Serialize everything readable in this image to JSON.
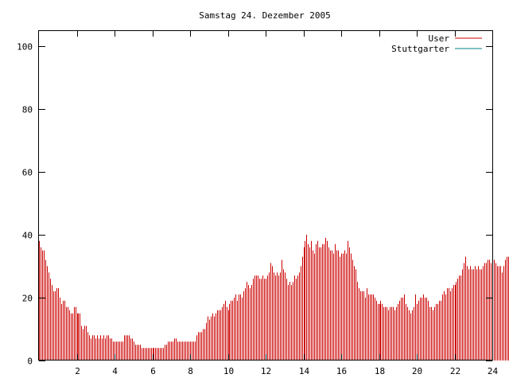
{
  "chart_data": {
    "type": "bar",
    "title": "Samstag 24. Dezember 2005",
    "xlabel": "",
    "ylabel": "",
    "xlim": [
      0,
      24
    ],
    "ylim": [
      0,
      105
    ],
    "x_ticks": [
      2,
      4,
      6,
      8,
      10,
      12,
      14,
      16,
      18,
      20,
      22,
      24
    ],
    "x_tick_labels": [
      "2",
      "4",
      "6",
      "8",
      "10",
      "12",
      "14",
      "16",
      "18",
      "20",
      "22",
      "24"
    ],
    "y_ticks": [
      0,
      20,
      40,
      60,
      80,
      100
    ],
    "y_tick_labels": [
      "0",
      "20",
      "40",
      "60",
      "80",
      "100"
    ],
    "grid": false,
    "legend_position": "top-right",
    "series": [
      {
        "name": "User",
        "color": "#cc0000",
        "style": "impulses",
        "x_step_minutes": 5,
        "values": [
          38,
          36,
          35,
          35,
          32,
          30,
          28,
          26,
          24,
          22,
          22,
          23,
          23,
          20,
          18,
          19,
          19,
          17,
          17,
          16,
          15,
          15,
          17,
          17,
          15,
          15,
          15,
          11,
          10,
          11,
          11,
          9,
          8,
          7,
          8,
          8,
          7,
          8,
          7,
          8,
          7,
          8,
          7,
          8,
          8,
          7,
          7,
          6,
          6,
          6,
          6,
          6,
          6,
          6,
          8,
          8,
          8,
          8,
          7,
          7,
          6,
          5,
          5,
          5,
          5,
          4,
          4,
          4,
          4,
          4,
          4,
          4,
          4,
          4,
          4,
          4,
          4,
          4,
          4,
          4,
          5,
          5,
          6,
          6,
          6,
          6,
          7,
          7,
          6,
          6,
          6,
          6,
          6,
          6,
          6,
          6,
          6,
          6,
          6,
          6,
          8,
          9,
          9,
          9,
          10,
          10,
          12,
          14,
          13,
          14,
          15,
          14,
          15,
          16,
          16,
          16,
          17,
          18,
          19,
          17,
          16,
          18,
          19,
          19,
          20,
          21,
          19,
          21,
          21,
          20,
          22,
          23,
          25,
          24,
          23,
          24,
          26,
          27,
          27,
          27,
          26,
          26,
          27,
          26,
          26,
          27,
          28,
          31,
          30,
          28,
          27,
          28,
          27,
          28,
          32,
          29,
          28,
          26,
          24,
          25,
          24,
          25,
          27,
          26,
          27,
          28,
          30,
          33,
          36,
          38,
          40,
          37,
          36,
          38,
          35,
          34,
          37,
          38,
          36,
          36,
          37,
          37,
          39,
          38,
          36,
          35,
          35,
          34,
          37,
          35,
          35,
          33,
          34,
          34,
          35,
          34,
          38,
          36,
          34,
          32,
          30,
          29,
          25,
          23,
          22,
          22,
          22,
          20,
          23,
          21,
          21,
          21,
          21,
          20,
          19,
          18,
          18,
          19,
          18,
          17,
          17,
          17,
          16,
          17,
          17,
          17,
          16,
          17,
          18,
          19,
          20,
          20,
          21,
          18,
          17,
          16,
          15,
          16,
          17,
          21,
          18,
          19,
          20,
          20,
          21,
          20,
          20,
          19,
          17,
          17,
          16,
          17,
          18,
          18,
          19,
          19,
          21,
          22,
          21,
          23,
          23,
          22,
          23,
          24,
          24,
          25,
          26,
          27,
          27,
          29,
          31,
          33,
          30,
          29,
          30,
          29,
          29,
          30,
          29,
          30,
          29,
          29,
          30,
          31,
          31,
          32,
          32,
          31,
          31,
          32,
          31,
          30,
          30,
          30,
          28,
          30,
          32,
          33,
          33,
          32,
          30,
          32,
          30,
          29
        ]
      },
      {
        "name": "Stuttgarter",
        "color": "#008080",
        "style": "impulses",
        "values": []
      }
    ]
  }
}
